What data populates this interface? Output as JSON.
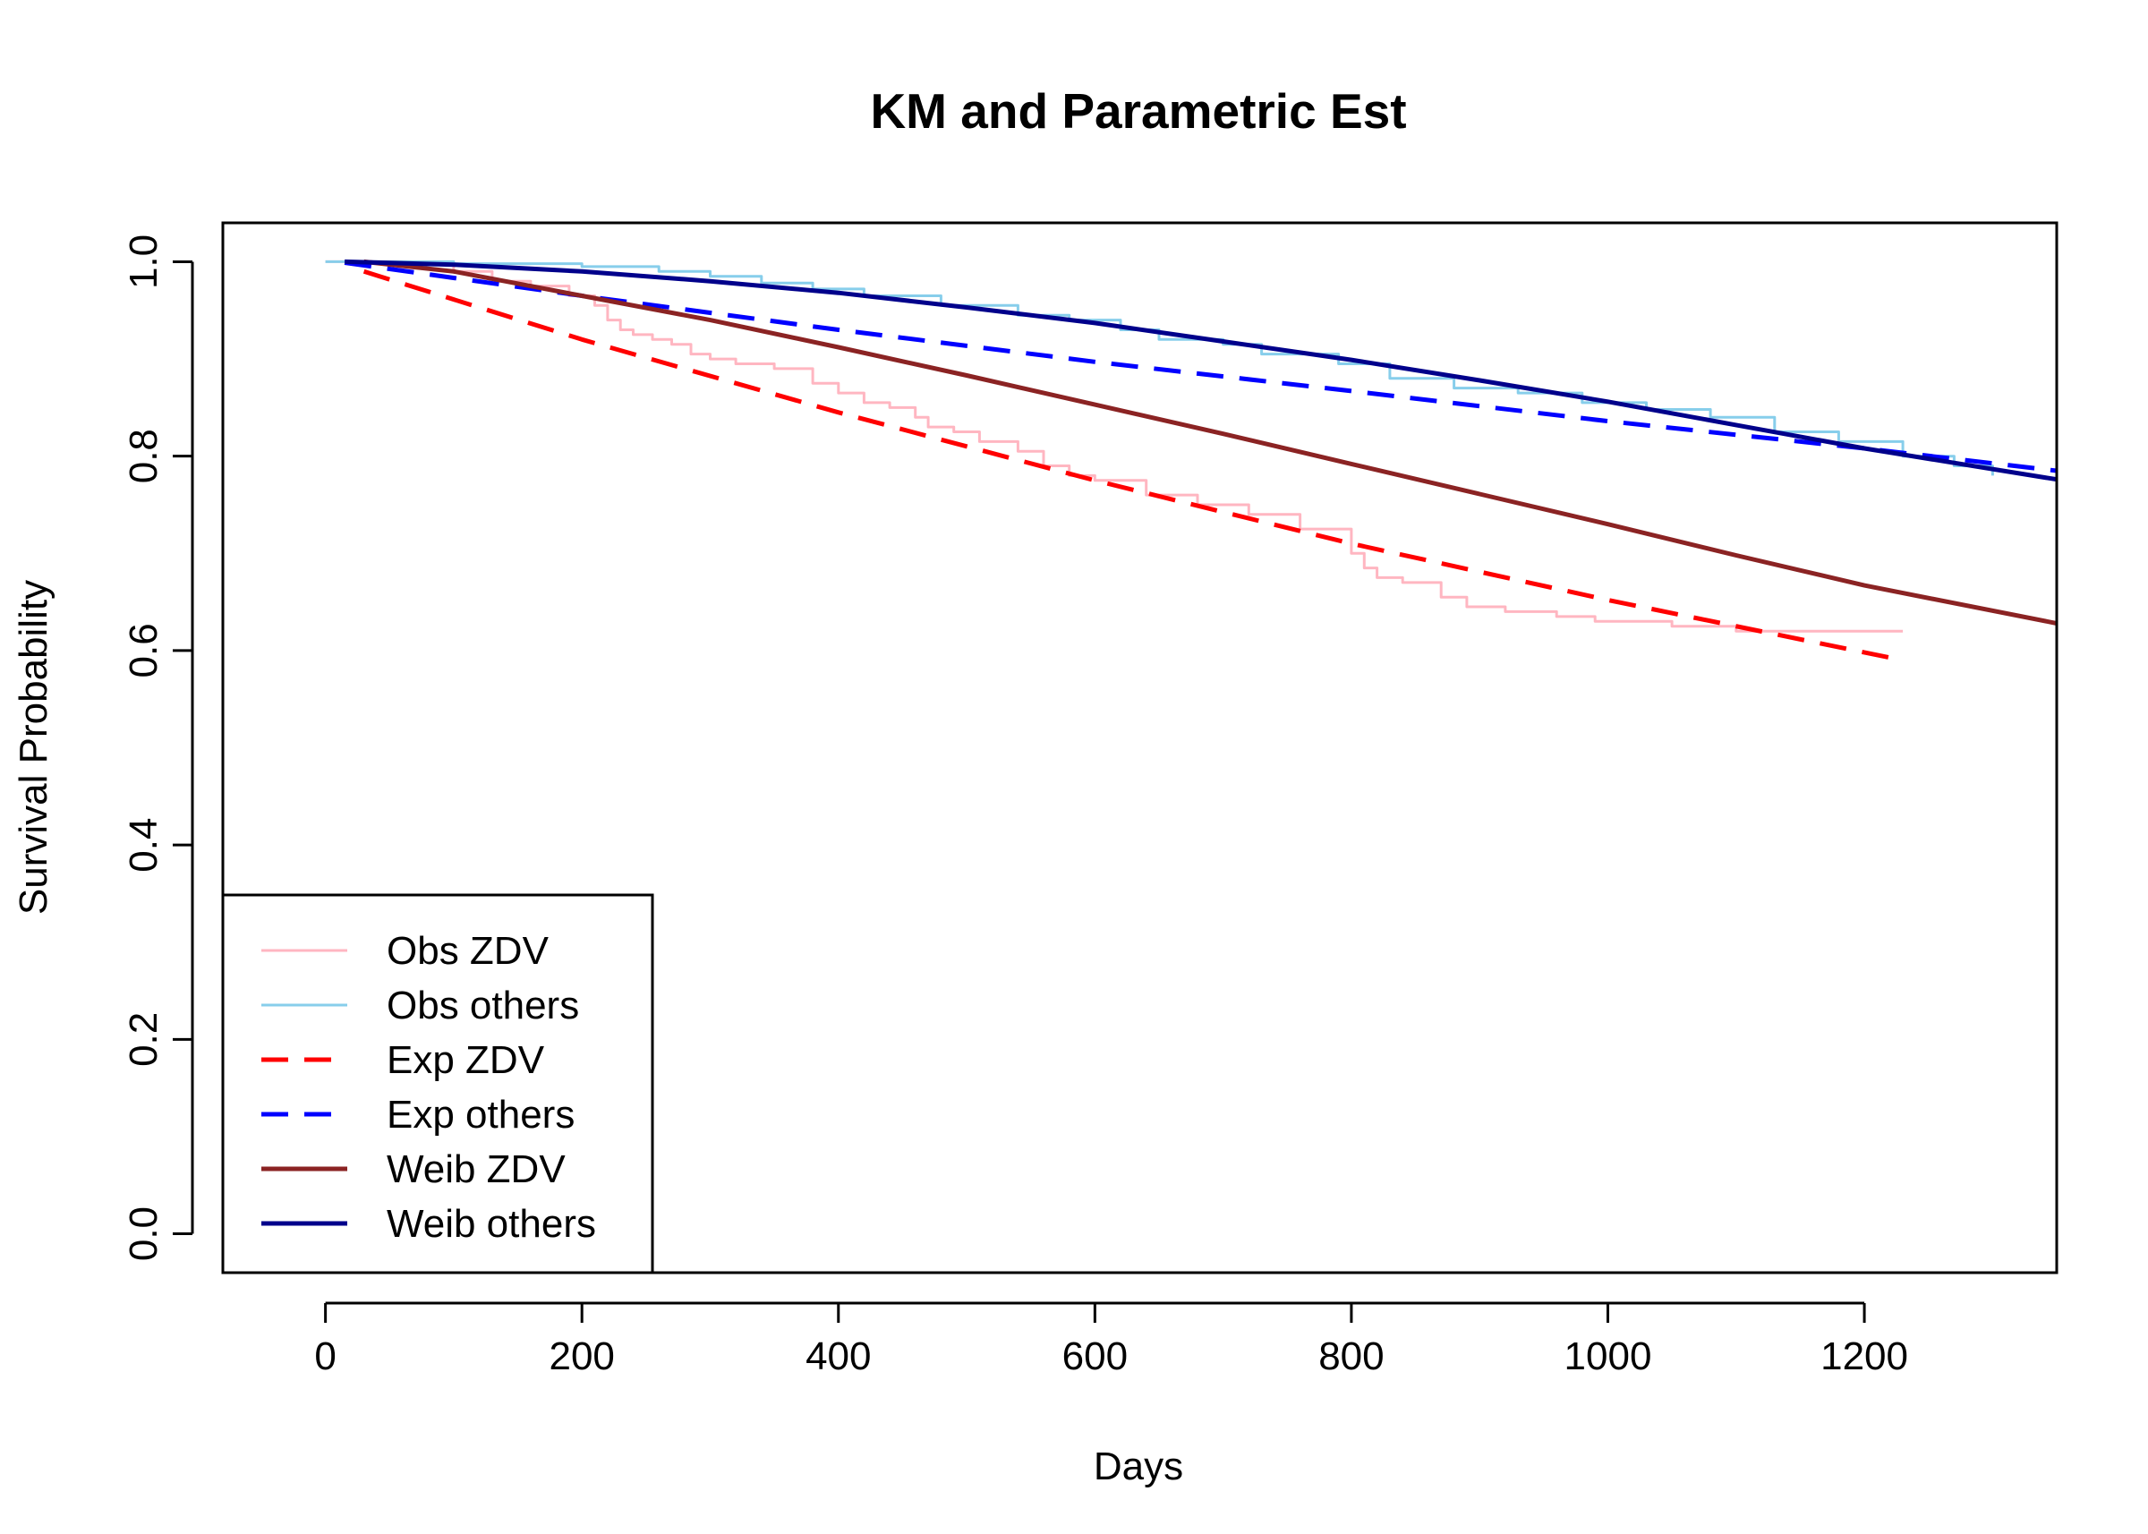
{
  "chart_data": {
    "type": "line",
    "title": "KM and Parametric Est",
    "xlabel": "Days",
    "ylabel": "Survival Probability",
    "xlim": [
      -80,
      1350
    ],
    "ylim": [
      -0.04,
      1.04
    ],
    "x_ticks": [
      0,
      200,
      400,
      600,
      800,
      1000,
      1200
    ],
    "x_tick_labels": [
      "0",
      "200",
      "400",
      "600",
      "800",
      "1000",
      "1200"
    ],
    "y_ticks": [
      0.0,
      0.2,
      0.4,
      0.6,
      0.8,
      1.0
    ],
    "y_tick_labels": [
      "0.0",
      "0.2",
      "0.4",
      "0.6",
      "0.8",
      "1.0"
    ],
    "grid": false,
    "legend_position": "bottom-left",
    "series": [
      {
        "name": "Obs ZDV",
        "color": "#FFB6C1",
        "style": "step",
        "width": 3,
        "x": [
          0,
          60,
          100,
          130,
          160,
          190,
          210,
          220,
          230,
          240,
          255,
          270,
          285,
          300,
          320,
          350,
          380,
          400,
          420,
          440,
          460,
          470,
          490,
          510,
          540,
          560,
          580,
          600,
          640,
          680,
          720,
          760,
          800,
          810,
          820,
          840,
          870,
          890,
          920,
          960,
          990,
          1050,
          1100,
          1150,
          1230
        ],
        "y": [
          1.0,
          0.998,
          0.99,
          0.98,
          0.975,
          0.965,
          0.955,
          0.94,
          0.93,
          0.925,
          0.92,
          0.915,
          0.905,
          0.9,
          0.895,
          0.89,
          0.875,
          0.865,
          0.855,
          0.85,
          0.84,
          0.83,
          0.825,
          0.815,
          0.805,
          0.79,
          0.78,
          0.775,
          0.76,
          0.75,
          0.74,
          0.725,
          0.7,
          0.685,
          0.675,
          0.67,
          0.655,
          0.645,
          0.64,
          0.635,
          0.63,
          0.625,
          0.62,
          0.62,
          0.62
        ]
      },
      {
        "name": "Obs others",
        "color": "#87CEEB",
        "style": "step",
        "width": 3,
        "x": [
          0,
          100,
          200,
          260,
          300,
          340,
          380,
          420,
          480,
          540,
          580,
          620,
          650,
          700,
          730,
          790,
          830,
          880,
          930,
          980,
          1030,
          1080,
          1130,
          1180,
          1230,
          1270,
          1300
        ],
        "y": [
          1.0,
          0.998,
          0.995,
          0.99,
          0.985,
          0.978,
          0.972,
          0.965,
          0.955,
          0.945,
          0.94,
          0.93,
          0.92,
          0.915,
          0.905,
          0.895,
          0.88,
          0.87,
          0.865,
          0.855,
          0.848,
          0.84,
          0.825,
          0.815,
          0.8,
          0.79,
          0.78
        ]
      },
      {
        "name": "Exp ZDV",
        "color": "#FF0000",
        "style": "dashed",
        "width": 5,
        "x": [
          30,
          200,
          400,
          600,
          800,
          1000,
          1230
        ],
        "y": [
          0.99,
          0.92,
          0.845,
          0.775,
          0.71,
          0.652,
          0.59
        ]
      },
      {
        "name": "Exp others",
        "color": "#0000FF",
        "style": "dashed",
        "width": 5,
        "x": [
          15,
          200,
          400,
          600,
          800,
          1000,
          1200,
          1350
        ],
        "y": [
          0.999,
          0.965,
          0.93,
          0.897,
          0.867,
          0.836,
          0.808,
          0.785
        ]
      },
      {
        "name": "Weib ZDV",
        "color": "#8B2323",
        "style": "solid",
        "width": 5,
        "x": [
          30,
          100,
          200,
          300,
          400,
          500,
          600,
          700,
          800,
          900,
          1000,
          1100,
          1200,
          1350
        ],
        "y": [
          1.0,
          0.99,
          0.965,
          0.94,
          0.912,
          0.883,
          0.853,
          0.823,
          0.792,
          0.761,
          0.73,
          0.698,
          0.667,
          0.628
        ]
      },
      {
        "name": "Weib others",
        "color": "#00008B",
        "style": "solid",
        "width": 5,
        "x": [
          15,
          100,
          200,
          300,
          400,
          500,
          600,
          700,
          800,
          900,
          1000,
          1100,
          1200,
          1350
        ],
        "y": [
          1.0,
          0.997,
          0.99,
          0.98,
          0.968,
          0.953,
          0.937,
          0.918,
          0.899,
          0.878,
          0.856,
          0.832,
          0.808,
          0.776
        ]
      }
    ]
  }
}
